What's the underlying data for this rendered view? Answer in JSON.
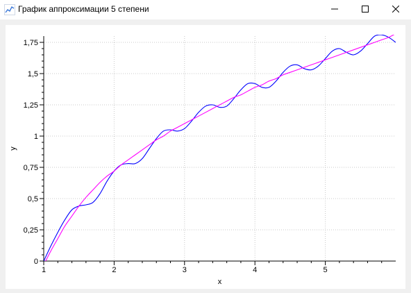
{
  "window": {
    "title": "График аппроксимации 5 степени",
    "icons": {
      "app": "line-chart-icon",
      "minimize": "minimize-icon",
      "maximize": "maximize-icon",
      "close": "close-icon"
    }
  },
  "chart_data": {
    "type": "line",
    "title": "",
    "xlabel": "x",
    "ylabel": "y",
    "xlim": [
      1,
      6
    ],
    "ylim": [
      0,
      1.8
    ],
    "xticks": [
      1,
      2,
      3,
      4,
      5
    ],
    "xtick_labels": [
      "1",
      "2",
      "3",
      "4",
      "5"
    ],
    "yticks": [
      0,
      0.25,
      0.5,
      0.75,
      1,
      1.25,
      1.5,
      1.75
    ],
    "ytick_labels": [
      "0",
      "0,25",
      "0,5",
      "0,75",
      "1",
      "1,25",
      "1,5",
      "1,75"
    ],
    "grid": true,
    "legend": "none",
    "series": [
      {
        "color": "#0000ff",
        "x": [
          1,
          1.1,
          1.2,
          1.3,
          1.4,
          1.5,
          1.6,
          1.7,
          1.8,
          1.9,
          2,
          2.1,
          2.2,
          2.3,
          2.4,
          2.5,
          2.6,
          2.7,
          2.8,
          2.9,
          3,
          3.1,
          3.2,
          3.3,
          3.4,
          3.5,
          3.6,
          3.7,
          3.8,
          3.9,
          4,
          4.1,
          4.2,
          4.3,
          4.4,
          4.5,
          4.6,
          4.7,
          4.8,
          4.9,
          5,
          5.1,
          5.2,
          5.3,
          5.4,
          5.5,
          5.6,
          5.7,
          5.8,
          5.9,
          6
        ],
        "y": [
          0,
          0.12,
          0.23,
          0.33,
          0.41,
          0.44,
          0.45,
          0.47,
          0.54,
          0.64,
          0.72,
          0.77,
          0.78,
          0.78,
          0.82,
          0.9,
          0.98,
          1.04,
          1.05,
          1.04,
          1.06,
          1.12,
          1.19,
          1.24,
          1.25,
          1.23,
          1.24,
          1.3,
          1.37,
          1.42,
          1.42,
          1.39,
          1.39,
          1.44,
          1.51,
          1.56,
          1.57,
          1.54,
          1.53,
          1.56,
          1.62,
          1.68,
          1.7,
          1.67,
          1.65,
          1.68,
          1.74,
          1.8,
          1.81,
          1.79,
          1.75
        ]
      },
      {
        "color": "#ff00ff",
        "x": [
          1,
          1.1,
          1.2,
          1.3,
          1.4,
          1.5,
          1.6,
          1.7,
          1.8,
          1.9,
          2,
          2.1,
          2.2,
          2.3,
          2.4,
          2.5,
          2.6,
          2.7,
          2.8,
          2.9,
          3,
          3.1,
          3.2,
          3.3,
          3.4,
          3.5,
          3.6,
          3.7,
          3.8,
          3.9,
          4,
          4.1,
          4.2,
          4.3,
          4.4,
          4.5,
          4.6,
          4.7,
          4.8,
          4.9,
          5,
          5.1,
          5.2,
          5.3,
          5.4,
          5.5,
          5.6,
          5.7,
          5.8,
          5.9,
          6
        ],
        "y": [
          -0.03,
          0.08,
          0.18,
          0.28,
          0.36,
          0.44,
          0.51,
          0.57,
          0.63,
          0.68,
          0.72,
          0.77,
          0.81,
          0.85,
          0.89,
          0.93,
          0.97,
          1.0,
          1.04,
          1.07,
          1.1,
          1.13,
          1.16,
          1.19,
          1.22,
          1.25,
          1.28,
          1.31,
          1.33,
          1.36,
          1.39,
          1.41,
          1.44,
          1.46,
          1.49,
          1.51,
          1.53,
          1.55,
          1.57,
          1.59,
          1.61,
          1.63,
          1.65,
          1.67,
          1.69,
          1.71,
          1.73,
          1.75,
          1.77,
          1.79,
          1.82
        ]
      }
    ]
  }
}
